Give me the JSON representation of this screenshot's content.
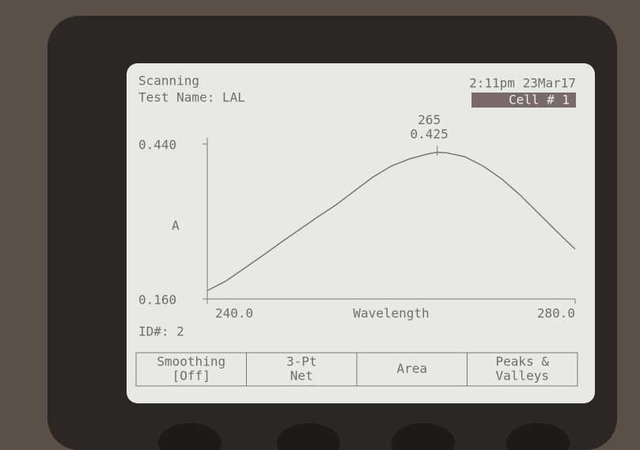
{
  "header": {
    "mode": "Scanning",
    "test_name": "Test Name: LAL",
    "datetime": "2:11pm 23Mar17",
    "cell": "Cell # 1"
  },
  "chart_data": {
    "type": "line",
    "color": "#777777",
    "x": [
      240,
      242,
      244,
      246,
      248,
      250,
      252,
      254,
      256,
      258,
      260,
      262,
      264,
      265,
      266,
      268,
      270,
      272,
      274,
      276,
      278,
      280
    ],
    "values": [
      0.175,
      0.192,
      0.215,
      0.238,
      0.262,
      0.285,
      0.308,
      0.33,
      0.355,
      0.38,
      0.4,
      0.413,
      0.422,
      0.425,
      0.424,
      0.417,
      0.4,
      0.377,
      0.348,
      0.315,
      0.282,
      0.25
    ],
    "xlim": [
      240,
      280
    ],
    "ylim": [
      0.16,
      0.44
    ],
    "xticks": [
      {
        "value": 240,
        "label": "240.0"
      },
      {
        "value": 280,
        "label": "280.0"
      }
    ],
    "yticks": [
      {
        "value": 0.16,
        "label": "0.160"
      },
      {
        "value": 0.44,
        "label": "0.440"
      }
    ],
    "x_label": "Wavelength",
    "y_label": "A",
    "peak": {
      "x": 265,
      "y": 0.425
    }
  },
  "id_label": "ID#: 2",
  "softkeys": [
    {
      "lines": [
        "Smoothing",
        "[Off]"
      ]
    },
    {
      "lines": [
        "3-Pt",
        "Net"
      ]
    },
    {
      "lines": [
        "Area"
      ]
    },
    {
      "lines": [
        "Peaks &",
        "Valleys"
      ]
    }
  ]
}
